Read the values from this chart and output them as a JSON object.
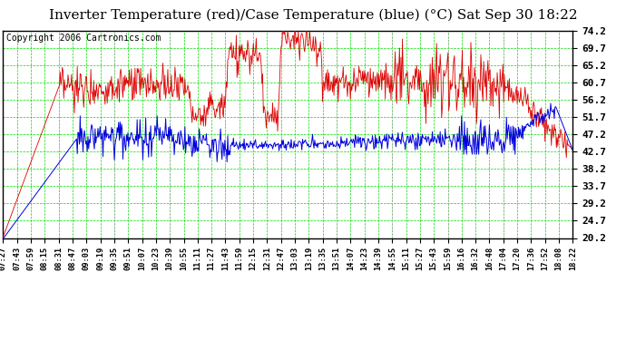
{
  "title": "Inverter Temperature (red)/Case Temperature (blue) (°C) Sat Sep 30 18:22",
  "copyright": "Copyright 2006 Cartronics.com",
  "y_ticks": [
    20.2,
    24.7,
    29.2,
    33.7,
    38.2,
    42.7,
    47.2,
    51.7,
    56.2,
    60.7,
    65.2,
    69.7,
    74.2
  ],
  "y_min": 20.2,
  "y_max": 74.2,
  "background_color": "#ffffff",
  "plot_bg_color": "#ffffff",
  "grid_color_green": "#00dd00",
  "grid_color_gray": "#aaaaaa",
  "line_color_red": "#dd0000",
  "line_color_blue": "#0000dd",
  "title_fontsize": 11,
  "copyright_fontsize": 7,
  "tick_fontsize": 8,
  "x_labels": [
    "07:27",
    "07:43",
    "07:59",
    "08:15",
    "08:31",
    "08:47",
    "09:03",
    "09:19",
    "09:35",
    "09:51",
    "10:07",
    "10:23",
    "10:39",
    "10:55",
    "11:11",
    "11:27",
    "11:43",
    "11:59",
    "12:15",
    "12:31",
    "12:47",
    "13:03",
    "13:19",
    "13:35",
    "13:51",
    "14:07",
    "14:23",
    "14:39",
    "14:55",
    "15:11",
    "15:27",
    "15:43",
    "15:59",
    "16:16",
    "16:32",
    "16:48",
    "17:04",
    "17:20",
    "17:36",
    "17:52",
    "18:08",
    "18:22"
  ]
}
